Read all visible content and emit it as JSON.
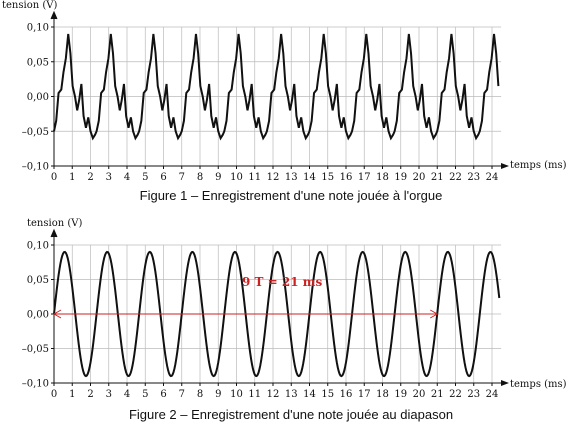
{
  "chart_data": [
    {
      "type": "line",
      "title": "Figure 1 – Enregistrement d'une note jouée à l'orgue",
      "ylabel": "tension (V)",
      "xlabel": "temps (ms)",
      "xlim": [
        0,
        24.5
      ],
      "ylim": [
        -0.1,
        0.1
      ],
      "x_ticks": [
        "0",
        "1",
        "2",
        "3",
        "4",
        "5",
        "6",
        "7",
        "8",
        "9",
        "10",
        "11",
        "12",
        "13",
        "14",
        "15",
        "16",
        "17",
        "18",
        "19",
        "20",
        "21",
        "22",
        "23",
        "24"
      ],
      "y_ticks": [
        "0,10",
        "0,05",
        "0,00",
        "–0,05",
        "–0,10"
      ],
      "y_tick_values": [
        0.1,
        0.05,
        0.0,
        -0.05,
        -0.1
      ],
      "grid": true,
      "series": [
        {
          "period_ms": 2.333,
          "cycle_points": [
            [
              0.0,
              -0.05
            ],
            [
              0.12,
              -0.035
            ],
            [
              0.25,
              0.005
            ],
            [
              0.4,
              0.01
            ],
            [
              0.52,
              0.035
            ],
            [
              0.65,
              0.055
            ],
            [
              0.78,
              0.09
            ],
            [
              0.9,
              0.062
            ],
            [
              1.02,
              0.015
            ],
            [
              1.15,
              0.0
            ],
            [
              1.27,
              -0.02
            ],
            [
              1.38,
              -0.005
            ],
            [
              1.5,
              0.018
            ],
            [
              1.62,
              -0.028
            ],
            [
              1.75,
              -0.045
            ],
            [
              1.88,
              -0.03
            ],
            [
              2.0,
              -0.05
            ],
            [
              2.13,
              -0.06
            ],
            [
              2.25,
              -0.055
            ],
            [
              2.333,
              -0.05
            ]
          ]
        }
      ]
    },
    {
      "type": "line",
      "title": "Figure 2 – Enregistrement d'une note jouée au diapason",
      "ylabel": "tension (V)",
      "xlabel": "temps (ms)",
      "xlim": [
        0,
        24.5
      ],
      "ylim": [
        -0.1,
        0.1
      ],
      "x_ticks": [
        "0",
        "1",
        "2",
        "3",
        "4",
        "5",
        "6",
        "7",
        "8",
        "9",
        "10",
        "11",
        "12",
        "13",
        "14",
        "15",
        "16",
        "17",
        "18",
        "19",
        "20",
        "21",
        "22",
        "23",
        "24"
      ],
      "y_ticks": [
        "0,10",
        "0,05",
        "0,00",
        "–0,05",
        "–0,10"
      ],
      "y_tick_values": [
        0.1,
        0.05,
        0.0,
        -0.05,
        -0.1
      ],
      "grid": true,
      "series": [
        {
          "amplitude": 0.09,
          "period_ms": 2.333,
          "x_start": 0,
          "x_end": 24.4
        }
      ],
      "annotation": {
        "text": "9 T = 21 ms",
        "arrow_from": 0,
        "arrow_to": 21,
        "color": "#cc2222"
      }
    }
  ]
}
